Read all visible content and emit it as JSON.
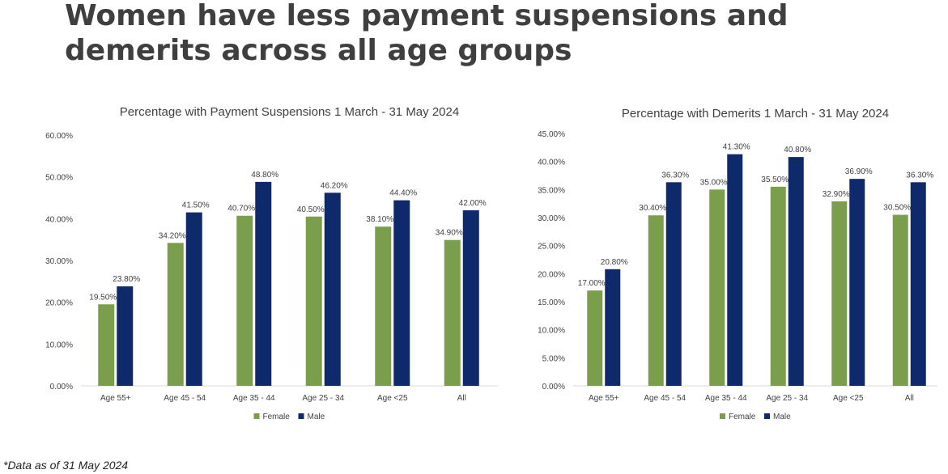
{
  "slide": {
    "title": "Women have less payment suspensions and demerits across all age groups",
    "footnote": "*Data as of 31 May 2024"
  },
  "colors": {
    "female": "#7a9e4b",
    "male": "#0f2a6b",
    "axis": "#d9d9d9",
    "text": "#404040"
  },
  "chart_data": [
    {
      "type": "bar",
      "title": "Percentage with Payment Suspensions 1 March - 31 May 2024",
      "categories": [
        "Age 55+",
        "Age 45 - 54",
        "Age 35 - 44",
        "Age 25 - 34",
        "Age <25",
        "All"
      ],
      "series": [
        {
          "name": "Female",
          "values": [
            19.5,
            34.2,
            40.7,
            40.5,
            38.1,
            34.9
          ]
        },
        {
          "name": "Male",
          "values": [
            23.8,
            41.5,
            48.8,
            46.2,
            44.4,
            42.0
          ]
        }
      ],
      "ylim": [
        0,
        60
      ],
      "yticks": [
        0,
        10,
        20,
        30,
        40,
        50,
        60
      ],
      "grid": false,
      "legend": "bottom"
    },
    {
      "type": "bar",
      "title": "Percentage with Demerits 1 March - 31 May 2024",
      "categories": [
        "Age 55+",
        "Age 45 - 54",
        "Age 35 - 44",
        "Age 25 - 34",
        "Age <25",
        "All"
      ],
      "series": [
        {
          "name": "Female",
          "values": [
            17.0,
            30.4,
            35.0,
            35.5,
            32.9,
            30.5
          ]
        },
        {
          "name": "Male",
          "values": [
            20.8,
            36.3,
            41.3,
            40.8,
            36.9,
            36.3
          ]
        }
      ],
      "ylim": [
        0,
        45
      ],
      "yticks": [
        0,
        5,
        10,
        15,
        20,
        25,
        30,
        35,
        40,
        45
      ],
      "grid": false,
      "legend": "bottom"
    }
  ]
}
